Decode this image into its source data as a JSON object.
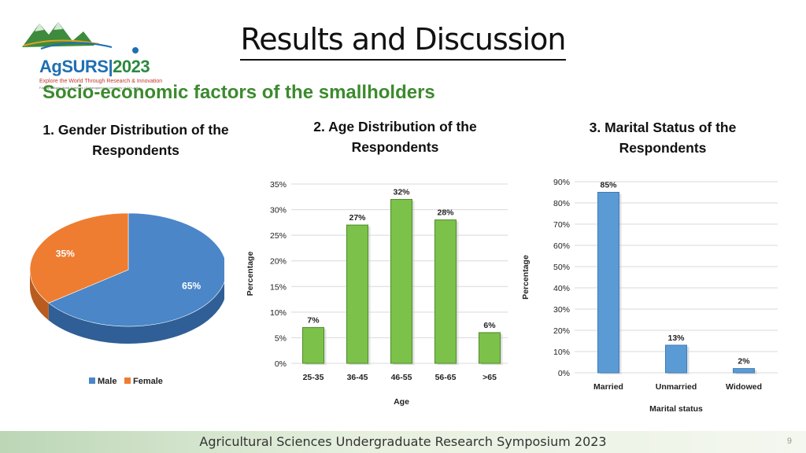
{
  "logo": {
    "name": "AgSURS",
    "year": "2023",
    "tagline": "Explore the World Through Research & Innovation",
    "fineprint": "Faculty of Agricultural Sciences | Sabaragamuwa University of Sri Lanka"
  },
  "page_title": "Results and Discussion",
  "section_title": "Socio-economic factors of the smallholders",
  "footer_text": "Agricultural Sciences Undergraduate Research Symposium 2023",
  "page_number": "9",
  "colors": {
    "male": "#4a86c8",
    "female": "#ee7d31",
    "age_bar": "#7cc24a",
    "marital_bar": "#5b9bd5",
    "section_green": "#3c8a2e"
  },
  "chart_data": [
    {
      "type": "pie",
      "title": "1. Gender Distribution of the Respondents",
      "categories": [
        "Male",
        "Female"
      ],
      "values": [
        65,
        35
      ],
      "labels": [
        "65%",
        "35%"
      ],
      "legend": "bottom"
    },
    {
      "type": "bar",
      "title": "2. Age Distribution of the Respondents",
      "categories": [
        "25-35",
        "36-45",
        "46-55",
        "56-65",
        ">65"
      ],
      "values": [
        7,
        27,
        32,
        28,
        6
      ],
      "labels": [
        "7%",
        "27%",
        "32%",
        "28%",
        "6%"
      ],
      "xlabel": "Age",
      "ylabel": "Percentage",
      "ylim": [
        0,
        35
      ],
      "yticks": [
        "0%",
        "5%",
        "10%",
        "15%",
        "20%",
        "25%",
        "30%",
        "35%"
      ],
      "grid": true
    },
    {
      "type": "bar",
      "title": "3. Marital Status of the Respondents",
      "categories": [
        "Married",
        "Unmarried",
        "Widowed"
      ],
      "values": [
        85,
        13,
        2
      ],
      "labels": [
        "85%",
        "13%",
        "2%"
      ],
      "xlabel": "Marital status",
      "ylabel": "Percentage",
      "ylim": [
        0,
        90
      ],
      "yticks": [
        "0%",
        "10%",
        "20%",
        "30%",
        "40%",
        "50%",
        "60%",
        "70%",
        "80%",
        "90%"
      ],
      "grid": true
    }
  ]
}
